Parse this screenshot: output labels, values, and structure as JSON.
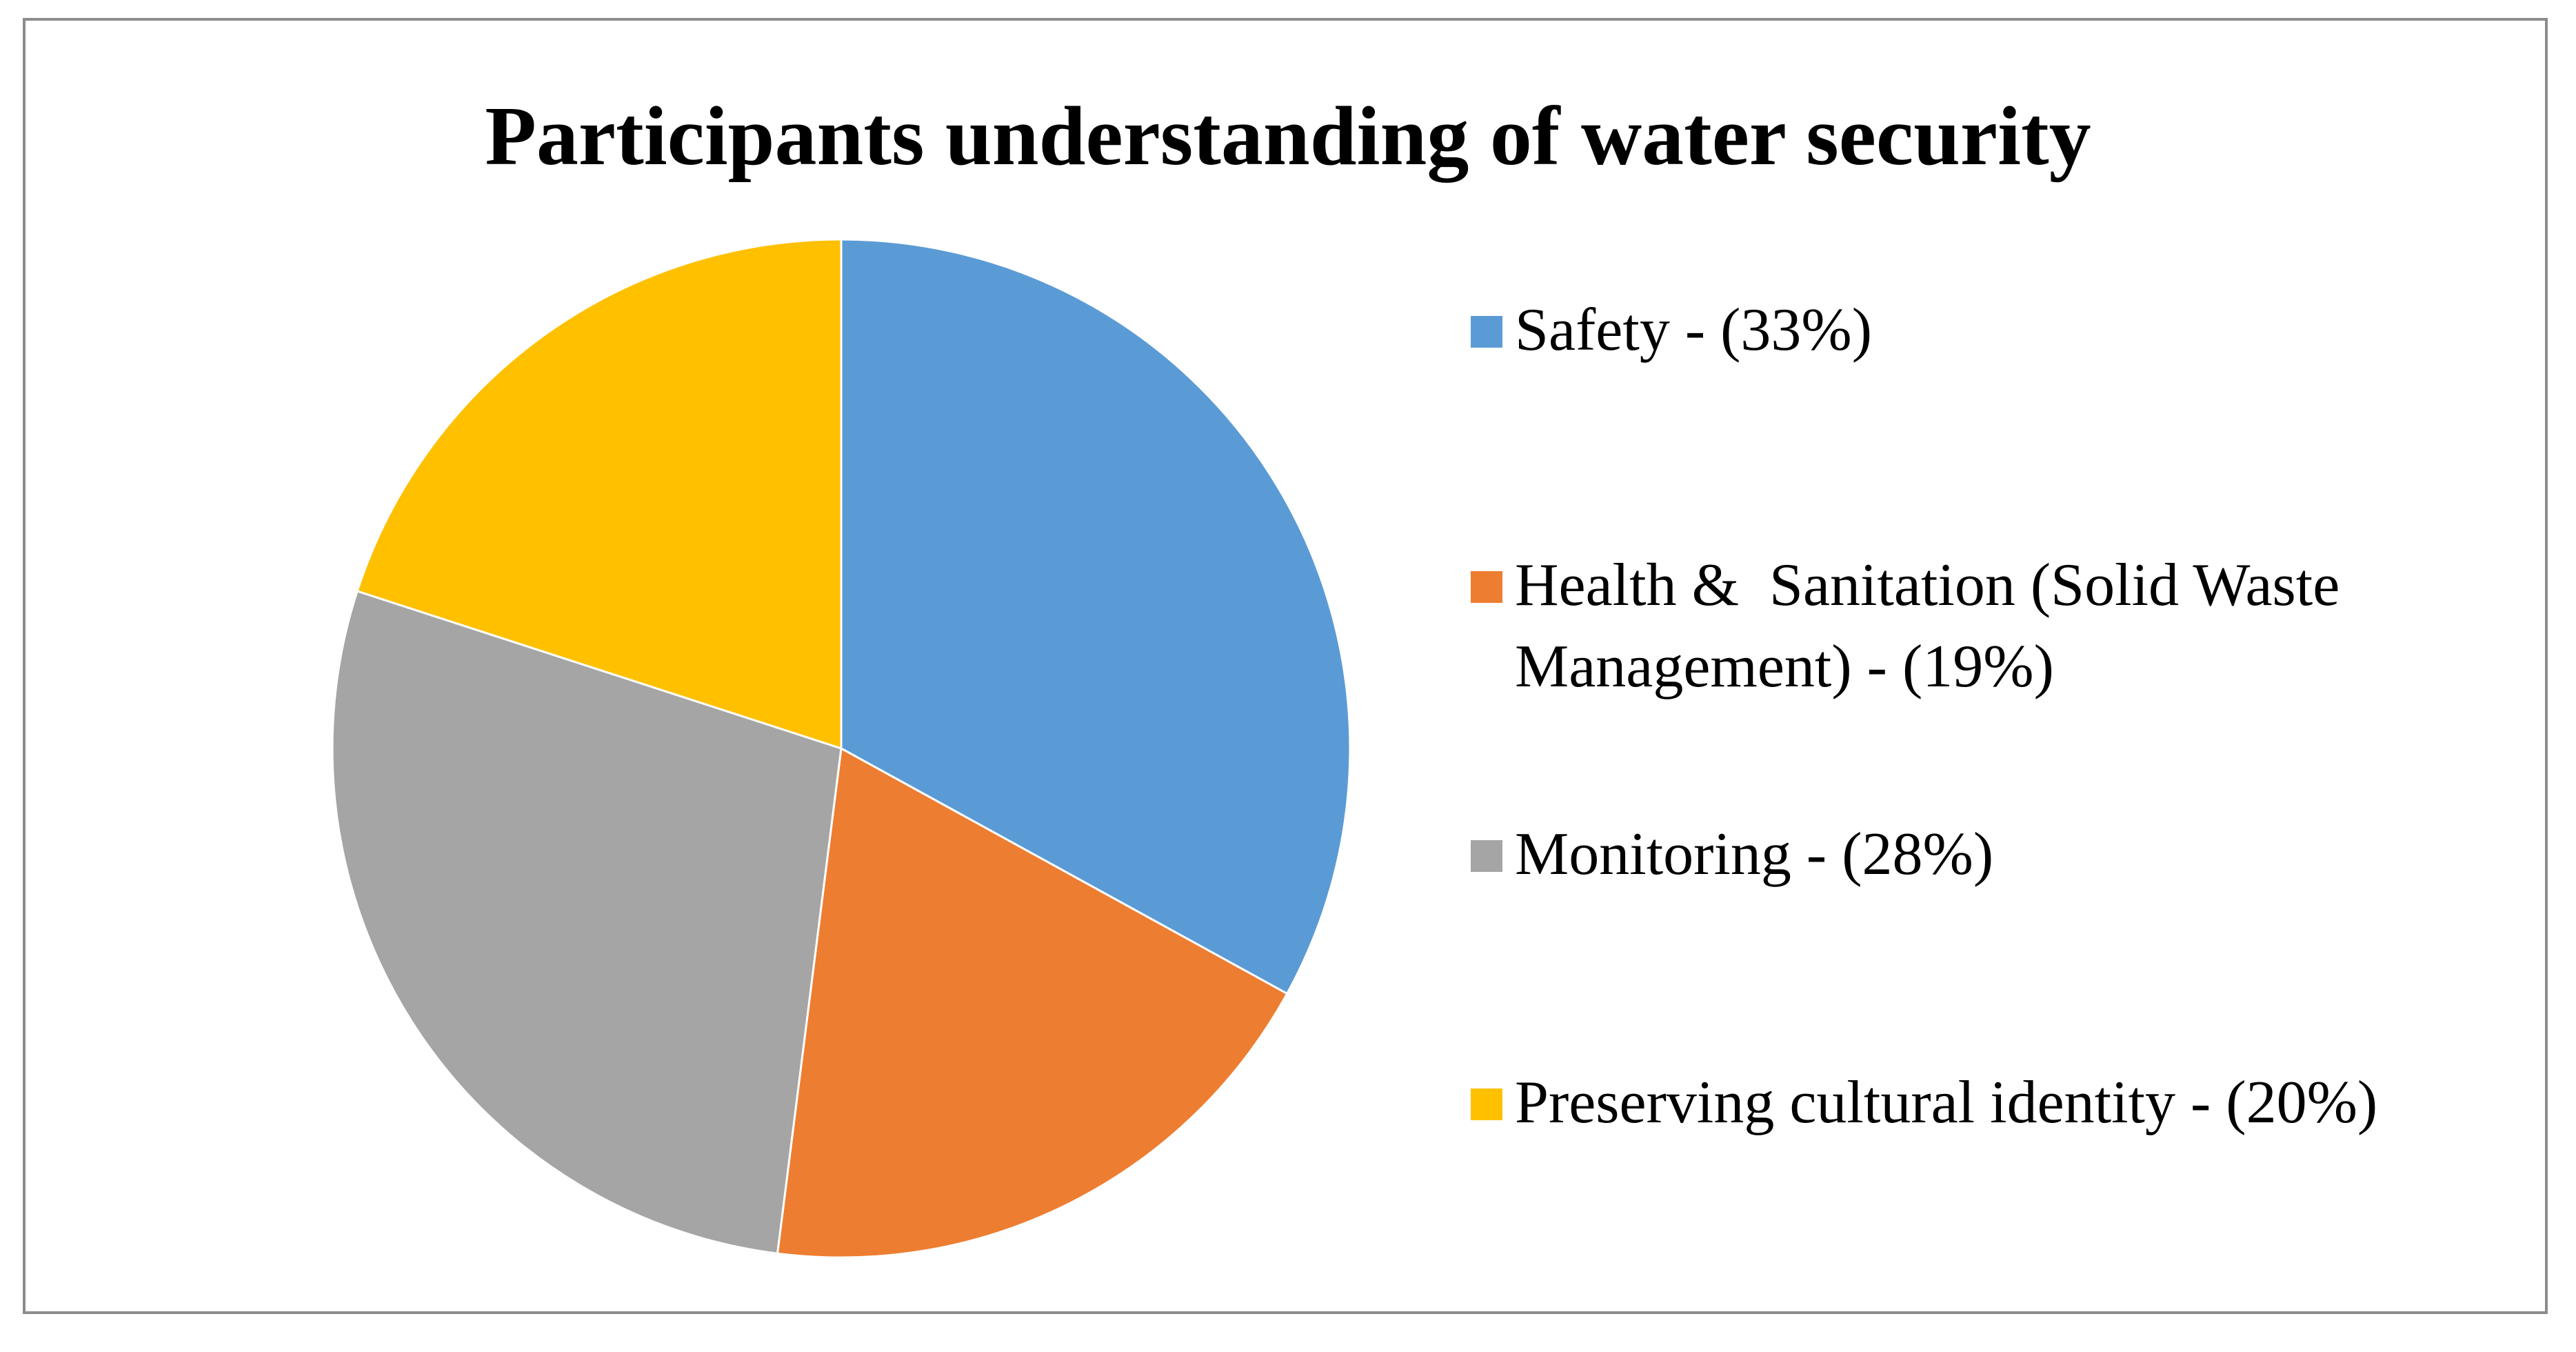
{
  "chart_data": {
    "type": "pie",
    "title": "Participants understanding of water security",
    "slices": [
      {
        "label": "Safety - (33%)",
        "value": 33,
        "color": "#5B9BD5"
      },
      {
        "label": "Health &  Sanitation (Solid Waste\nManagement) - (19%)",
        "value": 19,
        "color": "#ED7D31"
      },
      {
        "label": "Monitoring - (28%)",
        "value": 28,
        "color": "#A5A5A5"
      },
      {
        "label": "Preserving cultural identity - (20%)",
        "value": 20,
        "color": "#FFC000"
      }
    ],
    "legend_position": "right",
    "start_angle": "12 o'clock",
    "direction": "clockwise"
  }
}
